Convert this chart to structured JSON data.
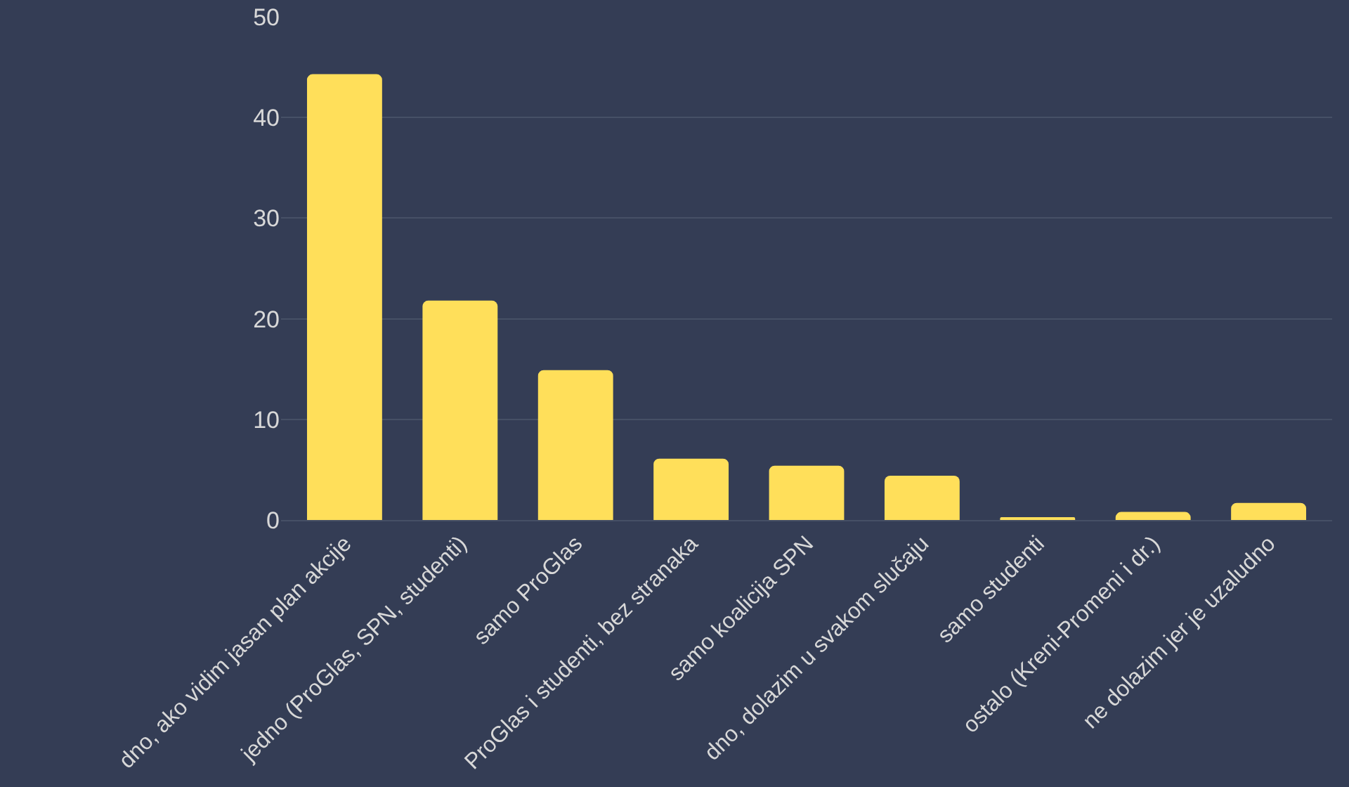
{
  "chart_data": {
    "type": "bar",
    "categories": [
      "dno, ako vidim jasan plan akcije",
      "jedno (ProGlas, SPN, studenti)",
      "samo ProGlas",
      "ProGlas i studenti, bez stranaka",
      "samo koalicija SPN",
      "dno, dolazim u svakom slučaju",
      "samo studenti",
      "ostalo (Kreni-Promeni i dr.)",
      "ne dolazim jer je uzaludno"
    ],
    "values": [
      44.3,
      21.8,
      14.9,
      6.1,
      5.4,
      4.4,
      0.2,
      0.8,
      1.7
    ],
    "color": "#ffdf5a",
    "ylim": [
      0,
      50
    ],
    "yticks": [
      0,
      10,
      20,
      30,
      40,
      50
    ],
    "grid": "y",
    "legend": false
  }
}
